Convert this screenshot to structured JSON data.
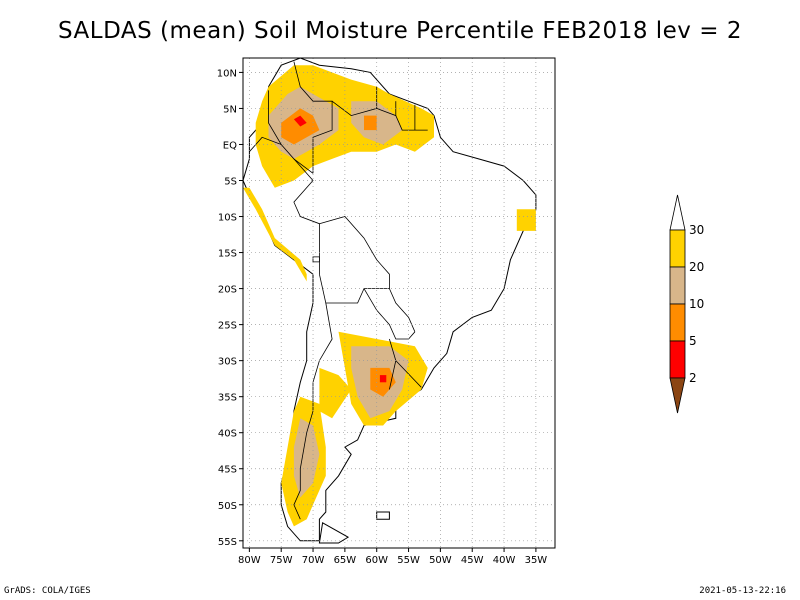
{
  "title": "SALDAS (mean) Soil Moisture Percentile FEB2018 lev = 2",
  "footer": {
    "left": "GrADS: COLA/IGES",
    "right": "2021-05-13-22:16"
  },
  "map": {
    "lon_range": [
      -81,
      -32
    ],
    "lat_range": [
      -56,
      12
    ],
    "lat_ticks": [
      {
        "value": 10,
        "label": "10N"
      },
      {
        "value": 5,
        "label": "5N"
      },
      {
        "value": 0,
        "label": "EQ"
      },
      {
        "value": -5,
        "label": "5S"
      },
      {
        "value": -10,
        "label": "10S"
      },
      {
        "value": -15,
        "label": "15S"
      },
      {
        "value": -20,
        "label": "20S"
      },
      {
        "value": -25,
        "label": "25S"
      },
      {
        "value": -30,
        "label": "30S"
      },
      {
        "value": -35,
        "label": "35S"
      },
      {
        "value": -40,
        "label": "40S"
      },
      {
        "value": -45,
        "label": "45S"
      },
      {
        "value": -50,
        "label": "50S"
      },
      {
        "value": -55,
        "label": "55S"
      }
    ],
    "lon_ticks": [
      {
        "value": -80,
        "label": "80W"
      },
      {
        "value": -75,
        "label": "75W"
      },
      {
        "value": -70,
        "label": "70W"
      },
      {
        "value": -65,
        "label": "65W"
      },
      {
        "value": -60,
        "label": "60W"
      },
      {
        "value": -55,
        "label": "55W"
      },
      {
        "value": -50,
        "label": "50W"
      },
      {
        "value": -45,
        "label": "45W"
      },
      {
        "value": -40,
        "label": "40W"
      },
      {
        "value": -35,
        "label": "35W"
      }
    ],
    "colors": {
      "c30": "#ffd200",
      "c20": "#d8b68a",
      "c10": "#ff8c00",
      "c5": "#ff0000",
      "c2": "#8b4513"
    },
    "regions": [
      {
        "class": "20-30",
        "points": [
          [
            -77,
            8
          ],
          [
            -73,
            11
          ],
          [
            -70,
            11
          ],
          [
            -64,
            9
          ],
          [
            -60,
            8
          ],
          [
            -58,
            7
          ],
          [
            -53,
            5
          ],
          [
            -51,
            4
          ],
          [
            -51,
            1
          ],
          [
            -54,
            -1
          ],
          [
            -57,
            0
          ],
          [
            -60,
            -1
          ],
          [
            -64,
            -1
          ],
          [
            -67,
            -2
          ],
          [
            -70,
            -3
          ],
          [
            -73,
            -5
          ],
          [
            -76,
            -6
          ],
          [
            -78,
            -3
          ],
          [
            -79,
            0
          ],
          [
            -79,
            3
          ],
          [
            -78,
            6
          ]
        ]
      },
      {
        "class": "10-20",
        "points": [
          [
            -77,
            4
          ],
          [
            -74,
            7
          ],
          [
            -72,
            8
          ],
          [
            -68,
            6
          ],
          [
            -66,
            5
          ],
          [
            -66,
            2
          ],
          [
            -69,
            0
          ],
          [
            -71,
            -1
          ],
          [
            -73,
            -2
          ],
          [
            -75,
            -1
          ],
          [
            -77,
            1
          ]
        ]
      },
      {
        "class": "10-20",
        "points": [
          [
            -64,
            6
          ],
          [
            -60,
            6
          ],
          [
            -57,
            4
          ],
          [
            -56,
            2
          ],
          [
            -59,
            0
          ],
          [
            -62,
            1
          ],
          [
            -64,
            3
          ]
        ]
      },
      {
        "class": "5-10",
        "points": [
          [
            -75,
            3
          ],
          [
            -72,
            5
          ],
          [
            -70,
            4
          ],
          [
            -69,
            2
          ],
          [
            -71,
            1
          ],
          [
            -73,
            0
          ],
          [
            -75,
            1
          ]
        ]
      },
      {
        "class": "5-10",
        "points": [
          [
            -62,
            4
          ],
          [
            -60,
            4
          ],
          [
            -60,
            2
          ],
          [
            -62,
            2
          ]
        ]
      },
      {
        "class": "2-5",
        "points": [
          [
            -73,
            3.5
          ],
          [
            -72,
            4
          ],
          [
            -71,
            3
          ],
          [
            -72,
            2.5
          ]
        ]
      },
      {
        "class": "20-30",
        "points": [
          [
            -80,
            -6
          ],
          [
            -78,
            -9
          ],
          [
            -76,
            -13
          ],
          [
            -72,
            -16
          ],
          [
            -71,
            -18
          ],
          [
            -71,
            -19
          ],
          [
            -73,
            -16
          ],
          [
            -76,
            -14
          ],
          [
            -79,
            -9
          ],
          [
            -81,
            -6
          ]
        ]
      },
      {
        "class": "20-30",
        "points": [
          [
            -66,
            -26
          ],
          [
            -60,
            -27
          ],
          [
            -54,
            -28
          ],
          [
            -52,
            -31
          ],
          [
            -53,
            -34
          ],
          [
            -57,
            -37
          ],
          [
            -59,
            -39
          ],
          [
            -62,
            -39
          ],
          [
            -64,
            -36
          ],
          [
            -65,
            -31
          ]
        ]
      },
      {
        "class": "10-20",
        "points": [
          [
            -64,
            -28
          ],
          [
            -58,
            -28
          ],
          [
            -55,
            -30
          ],
          [
            -56,
            -34
          ],
          [
            -58,
            -37
          ],
          [
            -61,
            -38
          ],
          [
            -63,
            -35
          ],
          [
            -64,
            -31
          ]
        ]
      },
      {
        "class": "5-10",
        "points": [
          [
            -61,
            -31
          ],
          [
            -58,
            -31
          ],
          [
            -57,
            -33
          ],
          [
            -59,
            -35
          ],
          [
            -61,
            -34
          ]
        ]
      },
      {
        "class": "2-5",
        "points": [
          [
            -59.5,
            -32
          ],
          [
            -58.5,
            -32
          ],
          [
            -58.5,
            -33
          ],
          [
            -59.5,
            -33
          ]
        ]
      },
      {
        "class": "20-30",
        "points": [
          [
            -72,
            -35
          ],
          [
            -69,
            -36
          ],
          [
            -68,
            -42
          ],
          [
            -68,
            -46
          ],
          [
            -70,
            -50
          ],
          [
            -71,
            -52
          ],
          [
            -73,
            -53
          ],
          [
            -74,
            -51
          ],
          [
            -75,
            -47
          ],
          [
            -74,
            -42
          ],
          [
            -73,
            -37
          ]
        ]
      },
      {
        "class": "10-20",
        "points": [
          [
            -72,
            -38
          ],
          [
            -70,
            -39
          ],
          [
            -69,
            -43
          ],
          [
            -70,
            -47
          ],
          [
            -72,
            -49
          ],
          [
            -73,
            -46
          ],
          [
            -73,
            -42
          ]
        ]
      },
      {
        "class": "20-30",
        "points": [
          [
            -69,
            -31
          ],
          [
            -66,
            -32
          ],
          [
            -64,
            -34
          ],
          [
            -67,
            -38
          ],
          [
            -69,
            -37
          ]
        ]
      },
      {
        "class": "20-30",
        "points": [
          [
            -38,
            -9
          ],
          [
            -35,
            -9
          ],
          [
            -35,
            -12
          ],
          [
            -38,
            -12
          ]
        ]
      }
    ],
    "land": [
      [
        [
          -77,
          8
        ],
        [
          -75,
          11
        ],
        [
          -72,
          12
        ],
        [
          -69,
          11
        ],
        [
          -64,
          10.5
        ],
        [
          -61,
          10
        ],
        [
          -58,
          7
        ],
        [
          -55,
          6
        ],
        [
          -52,
          5
        ],
        [
          -51,
          4
        ],
        [
          -50,
          1
        ],
        [
          -48,
          -1
        ],
        [
          -44,
          -2
        ],
        [
          -40,
          -3
        ],
        [
          -37,
          -5
        ],
        [
          -35,
          -7
        ],
        [
          -35,
          -9
        ],
        [
          -37,
          -12
        ],
        [
          -39,
          -16
        ],
        [
          -40,
          -20
        ],
        [
          -42,
          -23
        ],
        [
          -45,
          -24
        ],
        [
          -48,
          -26
        ],
        [
          -49,
          -29
        ],
        [
          -51,
          -31
        ],
        [
          -53,
          -34
        ],
        [
          -55,
          -35
        ],
        [
          -57,
          -36
        ],
        [
          -57,
          -38
        ],
        [
          -62,
          -39
        ],
        [
          -63,
          -41
        ],
        [
          -65,
          -42
        ],
        [
          -64,
          -43
        ],
        [
          -66,
          -46
        ],
        [
          -68,
          -48
        ],
        [
          -68,
          -51
        ],
        [
          -69,
          -52
        ],
        [
          -69,
          -55
        ],
        [
          -72,
          -55
        ],
        [
          -74,
          -53
        ],
        [
          -75,
          -50
        ],
        [
          -75,
          -47
        ],
        [
          -74,
          -44
        ],
        [
          -73,
          -41
        ],
        [
          -73,
          -37
        ],
        [
          -72,
          -33
        ],
        [
          -71,
          -30
        ],
        [
          -71,
          -26
        ],
        [
          -70,
          -22
        ],
        [
          -70,
          -18
        ],
        [
          -73,
          -16
        ],
        [
          -76,
          -14
        ],
        [
          -78,
          -10
        ],
        [
          -80,
          -7
        ],
        [
          -81,
          -5
        ],
        [
          -80,
          -2
        ],
        [
          -80,
          1
        ],
        [
          -78,
          3
        ],
        [
          -77,
          6
        ]
      ],
      [
        [
          -68.5,
          -52.5
        ],
        [
          -64.5,
          -54.5
        ],
        [
          -66,
          -55.3
        ],
        [
          -69,
          -55.3
        ]
      ]
    ],
    "borders": [
      [
        [
          -73,
          11.5
        ],
        [
          -72,
          8
        ],
        [
          -70,
          6
        ],
        [
          -67,
          6
        ],
        [
          -67,
          2
        ],
        [
          -70,
          1
        ],
        [
          -70,
          -4
        ]
      ],
      [
        [
          -67,
          6
        ],
        [
          -64,
          4
        ],
        [
          -60,
          5
        ],
        [
          -60,
          8
        ]
      ],
      [
        [
          -60,
          5
        ],
        [
          -57,
          4
        ],
        [
          -56,
          2
        ],
        [
          -54,
          2
        ],
        [
          -52,
          2
        ]
      ],
      [
        [
          -57,
          4
        ],
        [
          -57,
          6
        ]
      ],
      [
        [
          -54,
          2
        ],
        [
          -54,
          5.5
        ]
      ],
      [
        [
          -77,
          7.5
        ],
        [
          -77,
          3
        ],
        [
          -75,
          0
        ],
        [
          -73,
          -2
        ],
        [
          -70,
          -4
        ]
      ],
      [
        [
          -80,
          -1
        ],
        [
          -78,
          1
        ],
        [
          -75,
          0
        ]
      ],
      [
        [
          -73,
          -2
        ],
        [
          -70,
          -5
        ],
        [
          -73,
          -8
        ],
        [
          -72,
          -10
        ],
        [
          -69,
          -11
        ],
        [
          -69,
          -18
        ]
      ],
      [
        [
          -69,
          -11
        ],
        [
          -65,
          -10
        ],
        [
          -62,
          -13
        ],
        [
          -60,
          -16
        ],
        [
          -58,
          -18
        ],
        [
          -58,
          -20
        ],
        [
          -62,
          -20
        ],
        [
          -63,
          -22
        ],
        [
          -66,
          -22
        ],
        [
          -68,
          -22
        ],
        [
          -69,
          -18
        ]
      ],
      [
        [
          -58,
          -20
        ],
        [
          -57,
          -22
        ],
        [
          -55,
          -24
        ],
        [
          -54,
          -26
        ]
      ],
      [
        [
          -62,
          -20
        ],
        [
          -60,
          -23
        ],
        [
          -58,
          -25
        ],
        [
          -57,
          -27
        ],
        [
          -55,
          -27
        ],
        [
          -54,
          -26
        ]
      ],
      [
        [
          -68,
          -22
        ],
        [
          -67,
          -27
        ],
        [
          -69,
          -30
        ],
        [
          -70,
          -33
        ],
        [
          -70,
          -37
        ],
        [
          -71,
          -40
        ],
        [
          -72,
          -45
        ],
        [
          -72,
          -48
        ],
        [
          -73,
          -50
        ],
        [
          -72,
          -52
        ]
      ],
      [
        [
          -58,
          -27
        ],
        [
          -57,
          -30
        ],
        [
          -58,
          -34
        ]
      ],
      [
        [
          -57,
          -30
        ],
        [
          -53,
          -33.7
        ]
      ]
    ],
    "lakes": [
      [
        [
          -70,
          -15.6
        ],
        [
          -69,
          -15.6
        ],
        [
          -69,
          -16.3
        ],
        [
          -70,
          -16.3
        ]
      ]
    ],
    "islands": [
      [
        [
          -60,
          -51
        ],
        [
          -58,
          -51
        ],
        [
          -58,
          -52
        ],
        [
          -60,
          -52
        ]
      ]
    ]
  },
  "colorbar": {
    "levels": [
      {
        "label": "30",
        "color": "#ffd200"
      },
      {
        "label": "20",
        "color": "#d8b68a"
      },
      {
        "label": "10",
        "color": "#ff8c00"
      },
      {
        "label": "5",
        "color": "#ff0000"
      },
      {
        "label": "2",
        "color": "#8b4513"
      }
    ]
  }
}
